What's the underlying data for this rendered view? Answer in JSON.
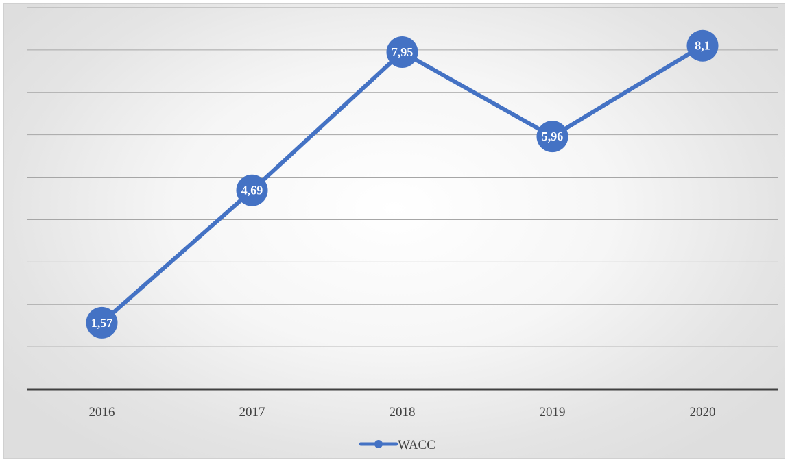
{
  "chart_data": {
    "type": "line",
    "title": "",
    "xlabel": "",
    "ylabel": "",
    "categories": [
      "2016",
      "2017",
      "2018",
      "2019",
      "2020"
    ],
    "series": [
      {
        "name": "WACC",
        "color": "#4472C4",
        "values": [
          1.57,
          4.69,
          7.95,
          5.96,
          8.1
        ],
        "labels": [
          "1,57",
          "4,69",
          "7,95",
          "5,96",
          "8,1"
        ]
      }
    ],
    "ylim": [
      0,
      9
    ],
    "y_axis_labels_visible": false,
    "grid": true,
    "legend": "bottom-center",
    "data_labels": "on-marker"
  }
}
